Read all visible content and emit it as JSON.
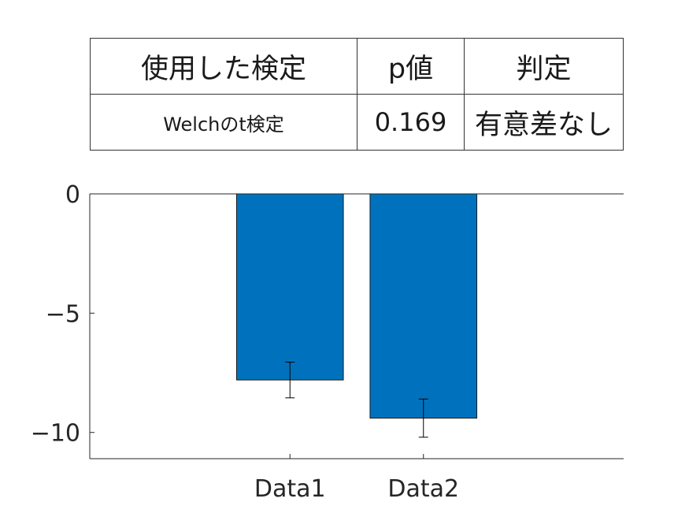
{
  "table": {
    "headers": [
      "使用した検定",
      "p値",
      "判定"
    ],
    "row": {
      "method": "Welchのt検定",
      "p_value": "0.169",
      "verdict": "有意差なし"
    }
  },
  "chart_data": {
    "type": "bar",
    "categories": [
      "Data1",
      "Data2"
    ],
    "values": [
      -7.8,
      -9.4
    ],
    "errors": [
      0.75,
      0.8
    ],
    "ylim": [
      -11.1,
      0
    ],
    "yticks": [
      0,
      -5,
      -10
    ],
    "ytick_labels": [
      "0",
      "−5",
      "−10"
    ],
    "title": "",
    "xlabel": "",
    "ylabel": "",
    "grid": false,
    "colors": {
      "bar": "#0072BD",
      "axis": "#262626",
      "error": "#000000"
    }
  }
}
